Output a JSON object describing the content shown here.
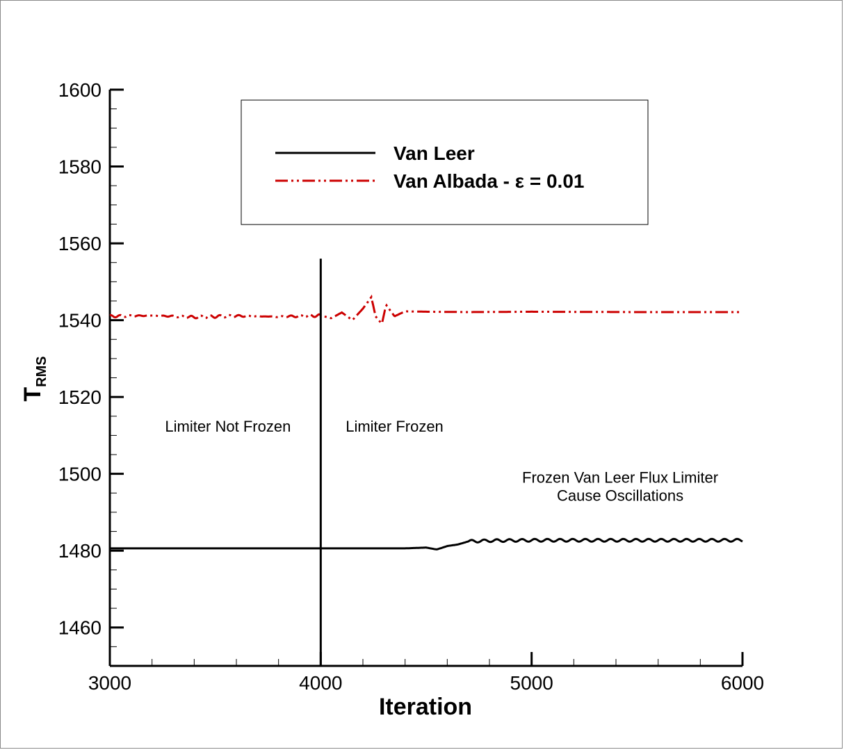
{
  "chart_data": {
    "type": "line",
    "xlabel": "Iteration",
    "ylabel_main": "T",
    "ylabel_sub": "RMS",
    "xlim": [
      3000,
      6000
    ],
    "ylim": [
      1450,
      1600
    ],
    "x_ticks": [
      3000,
      4000,
      5000,
      6000
    ],
    "y_ticks": [
      1460,
      1480,
      1500,
      1520,
      1540,
      1560,
      1580,
      1600
    ],
    "grid": false,
    "legend_position": "top-center",
    "series": [
      {
        "name": "Van Leer",
        "color": "#000000",
        "style": "solid",
        "x": [
          3000,
          3500,
          4000,
          4400,
          4500,
          4550,
          4600,
          4650,
          4700,
          4800,
          5000,
          5200,
          5400,
          5600,
          5800,
          6000
        ],
        "y": [
          1480.6,
          1480.6,
          1480.6,
          1480.6,
          1480.8,
          1480.3,
          1481.2,
          1481.6,
          1482.4,
          1482.6,
          1482.7,
          1482.7,
          1482.7,
          1482.7,
          1482.7,
          1482.7
        ]
      },
      {
        "name": "Van Albada - ε = 0.01",
        "color": "#cc0000",
        "style": "dash-dot-dot",
        "x": [
          3000,
          3200,
          3400,
          3600,
          3800,
          4000,
          4050,
          4100,
          4150,
          4200,
          4240,
          4260,
          4290,
          4310,
          4350,
          4400,
          4500,
          4700,
          5000,
          5500,
          6000
        ],
        "y": [
          1541,
          1541.2,
          1540.8,
          1541.1,
          1540.9,
          1541.2,
          1540.5,
          1542,
          1540,
          1543,
          1546,
          1541,
          1539,
          1544,
          1541,
          1542.3,
          1542.2,
          1542.1,
          1542.2,
          1542.1,
          1542.1
        ]
      }
    ],
    "vertical_marker": {
      "x": 4000,
      "y_top": 1556
    },
    "annotations": [
      {
        "text": "Limiter Not Frozen",
        "x": 3560,
        "y": 1511
      },
      {
        "text": "Limiter Frozen",
        "x": 4350,
        "y": 1511
      },
      {
        "text": "Frozen Van Leer Flux Limiter",
        "x": 5420,
        "y": 1497.7
      },
      {
        "text": "Cause Oscillations",
        "x": 5420,
        "y": 1493
      }
    ]
  }
}
